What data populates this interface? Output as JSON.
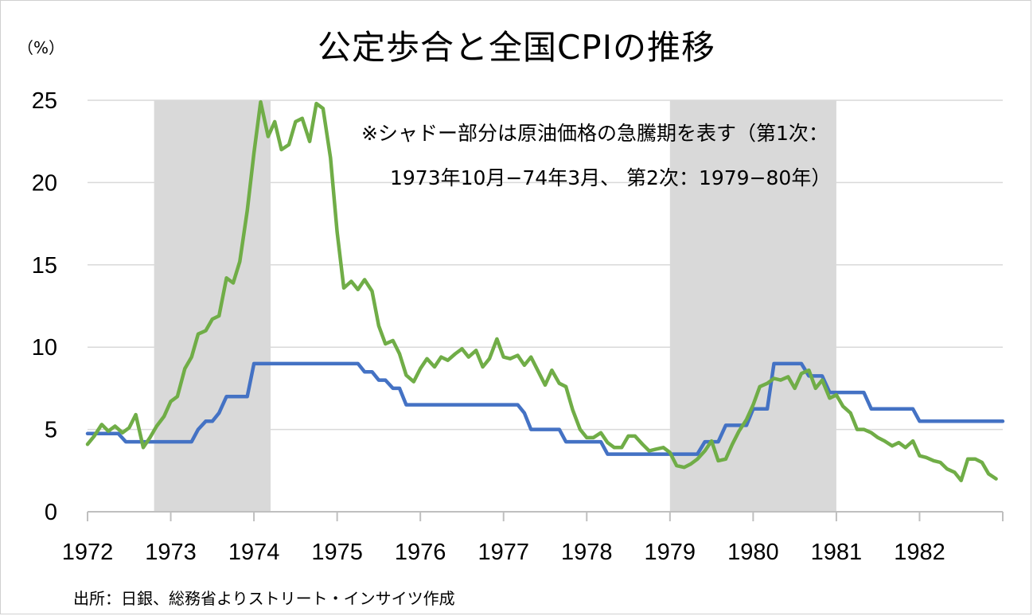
{
  "chart_data": {
    "type": "line",
    "title": "公定歩合と全国CPIの推移",
    "ylabel": "（%）",
    "ylim": [
      0,
      25
    ],
    "xlim": [
      1972,
      1983
    ],
    "grid": true,
    "y_ticks": [
      "0",
      "5",
      "10",
      "15",
      "20",
      "25"
    ],
    "x_ticks": [
      "1972",
      "1973",
      "1974",
      "1975",
      "1976",
      "1977",
      "1978",
      "1979",
      "1980",
      "1981",
      "1982"
    ],
    "shaded_periods": [
      [
        1972.8,
        1974.2
      ],
      [
        1979.0,
        1981.0
      ]
    ],
    "annotation": [
      "※シャドー部分は原油価格の急騰期を表す（第1次：",
      "1973年10月−74年3月、 第2次：1979−80年）"
    ],
    "source": "出所：日銀、総務省よりストリート・インサイツ作成",
    "series": [
      {
        "color": "#4472c4",
        "points": [
          [
            1972.0,
            4.75
          ],
          [
            1972.37,
            4.75
          ],
          [
            1972.46,
            4.25
          ],
          [
            1973.25,
            4.25
          ],
          [
            1973.33,
            5.0
          ],
          [
            1973.42,
            5.5
          ],
          [
            1973.5,
            5.5
          ],
          [
            1973.58,
            6.0
          ],
          [
            1973.67,
            7.0
          ],
          [
            1973.92,
            7.0
          ],
          [
            1974.0,
            9.0
          ],
          [
            1975.25,
            9.0
          ],
          [
            1975.33,
            8.5
          ],
          [
            1975.42,
            8.5
          ],
          [
            1975.5,
            8.0
          ],
          [
            1975.58,
            8.0
          ],
          [
            1975.67,
            7.5
          ],
          [
            1975.75,
            7.5
          ],
          [
            1975.83,
            6.5
          ],
          [
            1977.17,
            6.5
          ],
          [
            1977.25,
            6.0
          ],
          [
            1977.33,
            5.0
          ],
          [
            1977.67,
            5.0
          ],
          [
            1977.75,
            4.25
          ],
          [
            1978.17,
            4.25
          ],
          [
            1978.25,
            3.5
          ],
          [
            1979.33,
            3.5
          ],
          [
            1979.42,
            4.25
          ],
          [
            1979.58,
            4.25
          ],
          [
            1979.67,
            5.25
          ],
          [
            1979.92,
            5.25
          ],
          [
            1980.0,
            6.25
          ],
          [
            1980.17,
            6.25
          ],
          [
            1980.25,
            9.0
          ],
          [
            1980.58,
            9.0
          ],
          [
            1980.67,
            8.25
          ],
          [
            1980.83,
            8.25
          ],
          [
            1980.92,
            7.25
          ],
          [
            1981.33,
            7.25
          ],
          [
            1981.42,
            6.25
          ],
          [
            1981.92,
            6.25
          ],
          [
            1982.0,
            5.5
          ],
          [
            1983.0,
            5.5
          ]
        ]
      },
      {
        "color": "#70ad47",
        "points": [
          [
            1972.0,
            4.1
          ],
          [
            1972.08,
            4.6
          ],
          [
            1972.17,
            5.3
          ],
          [
            1972.25,
            4.9
          ],
          [
            1972.33,
            5.2
          ],
          [
            1972.42,
            4.8
          ],
          [
            1972.5,
            5.1
          ],
          [
            1972.58,
            5.9
          ],
          [
            1972.67,
            3.9
          ],
          [
            1972.75,
            4.5
          ],
          [
            1972.83,
            5.2
          ],
          [
            1972.92,
            5.8
          ],
          [
            1973.0,
            6.7
          ],
          [
            1973.08,
            7.0
          ],
          [
            1973.17,
            8.7
          ],
          [
            1973.25,
            9.4
          ],
          [
            1973.33,
            10.8
          ],
          [
            1973.42,
            11.0
          ],
          [
            1973.5,
            11.7
          ],
          [
            1973.58,
            11.9
          ],
          [
            1973.67,
            14.2
          ],
          [
            1973.75,
            13.9
          ],
          [
            1973.83,
            15.2
          ],
          [
            1973.92,
            18.3
          ],
          [
            1974.0,
            21.8
          ],
          [
            1974.08,
            24.9
          ],
          [
            1974.17,
            22.8
          ],
          [
            1974.25,
            23.7
          ],
          [
            1974.33,
            22.0
          ],
          [
            1974.42,
            22.3
          ],
          [
            1974.5,
            23.7
          ],
          [
            1974.58,
            23.9
          ],
          [
            1974.67,
            22.5
          ],
          [
            1974.75,
            24.8
          ],
          [
            1974.83,
            24.5
          ],
          [
            1974.92,
            21.5
          ],
          [
            1975.0,
            17.0
          ],
          [
            1975.08,
            13.6
          ],
          [
            1975.17,
            14.0
          ],
          [
            1975.25,
            13.5
          ],
          [
            1975.33,
            14.1
          ],
          [
            1975.42,
            13.4
          ],
          [
            1975.5,
            11.3
          ],
          [
            1975.58,
            10.2
          ],
          [
            1975.67,
            10.4
          ],
          [
            1975.75,
            9.6
          ],
          [
            1975.83,
            8.3
          ],
          [
            1975.92,
            7.9
          ],
          [
            1976.0,
            8.7
          ],
          [
            1976.08,
            9.3
          ],
          [
            1976.17,
            8.8
          ],
          [
            1976.25,
            9.4
          ],
          [
            1976.33,
            9.2
          ],
          [
            1976.42,
            9.6
          ],
          [
            1976.5,
            9.9
          ],
          [
            1976.58,
            9.4
          ],
          [
            1976.67,
            9.8
          ],
          [
            1976.75,
            8.8
          ],
          [
            1976.83,
            9.3
          ],
          [
            1976.92,
            10.5
          ],
          [
            1977.0,
            9.4
          ],
          [
            1977.08,
            9.3
          ],
          [
            1977.17,
            9.5
          ],
          [
            1977.25,
            8.9
          ],
          [
            1977.33,
            9.4
          ],
          [
            1977.42,
            8.5
          ],
          [
            1977.5,
            7.7
          ],
          [
            1977.58,
            8.6
          ],
          [
            1977.67,
            7.8
          ],
          [
            1977.75,
            7.6
          ],
          [
            1977.83,
            6.2
          ],
          [
            1977.92,
            5.0
          ],
          [
            1978.0,
            4.5
          ],
          [
            1978.08,
            4.5
          ],
          [
            1978.17,
            4.8
          ],
          [
            1978.25,
            4.2
          ],
          [
            1978.33,
            3.9
          ],
          [
            1978.42,
            3.9
          ],
          [
            1978.5,
            4.6
          ],
          [
            1978.58,
            4.6
          ],
          [
            1978.67,
            4.1
          ],
          [
            1978.75,
            3.7
          ],
          [
            1978.83,
            3.8
          ],
          [
            1978.92,
            3.9
          ],
          [
            1979.0,
            3.6
          ],
          [
            1979.08,
            2.8
          ],
          [
            1979.17,
            2.7
          ],
          [
            1979.25,
            2.9
          ],
          [
            1979.33,
            3.2
          ],
          [
            1979.42,
            3.7
          ],
          [
            1979.5,
            4.3
          ],
          [
            1979.58,
            3.1
          ],
          [
            1979.67,
            3.2
          ],
          [
            1979.75,
            4.1
          ],
          [
            1979.83,
            4.9
          ],
          [
            1979.92,
            5.6
          ],
          [
            1980.0,
            6.5
          ],
          [
            1980.08,
            7.6
          ],
          [
            1980.17,
            7.8
          ],
          [
            1980.25,
            8.1
          ],
          [
            1980.33,
            8.0
          ],
          [
            1980.42,
            8.2
          ],
          [
            1980.5,
            7.5
          ],
          [
            1980.58,
            8.4
          ],
          [
            1980.67,
            8.6
          ],
          [
            1980.75,
            7.5
          ],
          [
            1980.83,
            8.0
          ],
          [
            1980.92,
            6.9
          ],
          [
            1981.0,
            7.1
          ],
          [
            1981.08,
            6.4
          ],
          [
            1981.17,
            6.0
          ],
          [
            1981.25,
            5.0
          ],
          [
            1981.33,
            5.0
          ],
          [
            1981.42,
            4.8
          ],
          [
            1981.5,
            4.5
          ],
          [
            1981.58,
            4.3
          ],
          [
            1981.67,
            4.0
          ],
          [
            1981.75,
            4.2
          ],
          [
            1981.83,
            3.9
          ],
          [
            1981.92,
            4.3
          ],
          [
            1982.0,
            3.4
          ],
          [
            1982.08,
            3.3
          ],
          [
            1982.17,
            3.1
          ],
          [
            1982.25,
            3.0
          ],
          [
            1982.33,
            2.6
          ],
          [
            1982.42,
            2.4
          ],
          [
            1982.5,
            1.9
          ],
          [
            1982.58,
            3.2
          ],
          [
            1982.67,
            3.2
          ],
          [
            1982.75,
            3.0
          ],
          [
            1982.83,
            2.3
          ],
          [
            1982.92,
            2.0
          ]
        ]
      }
    ]
  }
}
